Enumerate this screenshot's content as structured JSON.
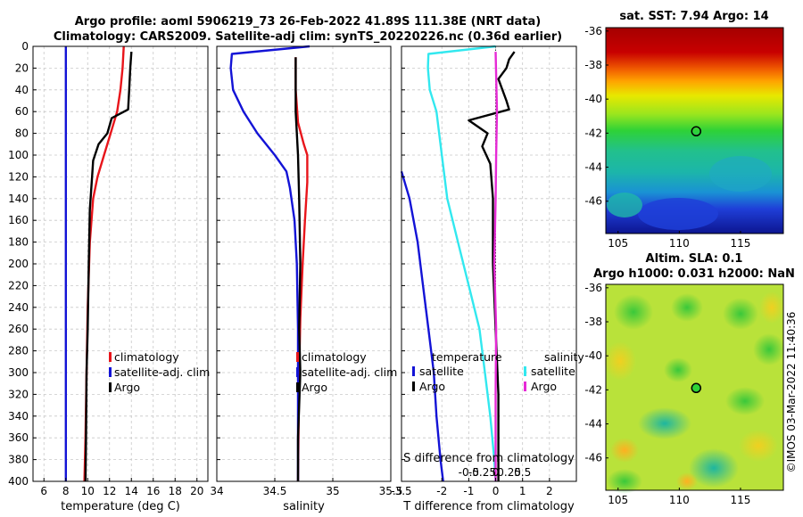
{
  "header": {
    "title_line1": "Argo profile: aoml 5906219_73 26-Feb-2022 41.89S 111.38E (NRT data)",
    "title_line2": "Climatology: CARS2009. Satellite-adj clim: synTS_20220226.nc (0.36d earlier)"
  },
  "copyright": "©IMOS 03-Mar-2022 11:40:36",
  "colors": {
    "climatology": "#e8151b",
    "satellite": "#1313d6",
    "argo": "#000000",
    "cyan": "#32e8ef",
    "magenta": "#e62ad6"
  },
  "depth_axis": {
    "ticks": [
      "0",
      "20",
      "40",
      "60",
      "80",
      "100",
      "120",
      "140",
      "160",
      "180",
      "200",
      "220",
      "240",
      "260",
      "280",
      "300",
      "320",
      "340",
      "360",
      "380",
      "400"
    ]
  },
  "chart_data": [
    {
      "type": "line",
      "name": "temperature",
      "xlabel": "temperature (deg C)",
      "ylabel": "depth",
      "xlim": [
        5,
        21
      ],
      "ylim": [
        400,
        0
      ],
      "xticks": [
        6,
        8,
        10,
        12,
        14,
        16,
        18,
        20
      ],
      "xtick_labels": [
        "6",
        "8",
        "10",
        "12",
        "14",
        "16",
        "18",
        "20"
      ],
      "legend": [
        {
          "label": "climatology",
          "color": "#e8151b"
        },
        {
          "label": "satellite-adj. clim",
          "color": "#1313d6"
        },
        {
          "label": "Argo",
          "color": "#000000"
        }
      ],
      "series": [
        {
          "name": "climatology",
          "color": "#e8151b",
          "width": 2.4,
          "points": [
            [
              13.3,
              0
            ],
            [
              13.2,
              20
            ],
            [
              13.0,
              40
            ],
            [
              12.7,
              60
            ],
            [
              12.1,
              80
            ],
            [
              11.5,
              100
            ],
            [
              10.9,
              120
            ],
            [
              10.5,
              140
            ],
            [
              10.2,
              180
            ],
            [
              10.0,
              240
            ],
            [
              9.9,
              300
            ],
            [
              9.8,
              360
            ],
            [
              9.7,
              400
            ]
          ]
        },
        {
          "name": "satellite-adj. clim",
          "color": "#1313d6",
          "width": 2.4,
          "points": [
            [
              8.0,
              0
            ],
            [
              8.0,
              400
            ]
          ]
        },
        {
          "name": "Argo",
          "color": "#000000",
          "width": 2.4,
          "points": [
            [
              14.0,
              5
            ],
            [
              13.9,
              20
            ],
            [
              13.8,
              40
            ],
            [
              13.7,
              58
            ],
            [
              12.2,
              66
            ],
            [
              11.8,
              80
            ],
            [
              11.0,
              90
            ],
            [
              10.5,
              105
            ],
            [
              10.4,
              120
            ],
            [
              10.2,
              150
            ],
            [
              10.1,
              200
            ],
            [
              10.0,
              260
            ],
            [
              9.9,
              300
            ],
            [
              9.85,
              360
            ],
            [
              9.8,
              400
            ]
          ]
        }
      ]
    },
    {
      "type": "line",
      "name": "salinity",
      "xlabel": "salinity",
      "ylabel": "depth",
      "xlim": [
        34,
        35.5
      ],
      "ylim": [
        400,
        0
      ],
      "xticks": [
        34,
        34.5,
        35,
        35.5
      ],
      "xtick_labels": [
        "34",
        "34.5",
        "35",
        "35.5"
      ],
      "legend": [
        {
          "label": "climatology",
          "color": "#e8151b"
        },
        {
          "label": "satellite-adj. clim",
          "color": "#1313d6"
        },
        {
          "label": "Argo",
          "color": "#000000"
        }
      ],
      "series": [
        {
          "name": "climatology",
          "color": "#e8151b",
          "width": 2.4,
          "points": [
            [
              34.68,
              10
            ],
            [
              34.68,
              40
            ],
            [
              34.7,
              70
            ],
            [
              34.75,
              90
            ],
            [
              34.78,
              100
            ],
            [
              34.78,
              125
            ],
            [
              34.76,
              160
            ],
            [
              34.74,
              200
            ],
            [
              34.72,
              250
            ],
            [
              34.71,
              300
            ],
            [
              34.7,
              400
            ]
          ]
        },
        {
          "name": "satellite-adj. clim",
          "color": "#1313d6",
          "width": 2.4,
          "points": [
            [
              34.8,
              0
            ],
            [
              34.13,
              7
            ],
            [
              34.12,
              20
            ],
            [
              34.14,
              40
            ],
            [
              34.23,
              60
            ],
            [
              34.35,
              80
            ],
            [
              34.5,
              100
            ],
            [
              34.6,
              115
            ],
            [
              34.63,
              130
            ],
            [
              34.67,
              160
            ],
            [
              34.69,
              200
            ],
            [
              34.7,
              260
            ],
            [
              34.7,
              400
            ]
          ]
        },
        {
          "name": "Argo",
          "color": "#000000",
          "width": 2.4,
          "points": [
            [
              34.68,
              10
            ],
            [
              34.68,
              60
            ],
            [
              34.7,
              100
            ],
            [
              34.71,
              140
            ],
            [
              34.72,
              200
            ],
            [
              34.71,
              260
            ],
            [
              34.72,
              300
            ],
            [
              34.7,
              360
            ],
            [
              34.7,
              400
            ]
          ]
        }
      ]
    },
    {
      "type": "line",
      "name": "difference",
      "xlabel": "T difference from climatology",
      "x2label": "S difference from climatology",
      "ylabel": "depth",
      "xlim": [
        -3.5,
        3
      ],
      "ylim": [
        400,
        0
      ],
      "xticks": [
        -3.5,
        -2,
        -1,
        0,
        1,
        2
      ],
      "xtick_labels": [
        "-3.5",
        "-2",
        "-1",
        "0",
        "1",
        "2"
      ],
      "x2ticks": [
        -1,
        -0.5,
        0,
        0.5,
        1
      ],
      "x2tick_labels": [
        "-0.5",
        "-0.25",
        "0",
        "0.25",
        "0.5"
      ],
      "legend_left_title": "temperature",
      "legend_right_title": "salinity",
      "legend": [
        {
          "label": "satellite",
          "color": "#1313d6",
          "group": "temperature"
        },
        {
          "label": "Argo",
          "color": "#000000",
          "group": "temperature"
        },
        {
          "label": "satellite",
          "color": "#32e8ef",
          "group": "salinity"
        },
        {
          "label": "Argo",
          "color": "#e62ad6",
          "group": "salinity"
        }
      ],
      "series": [
        {
          "name": "T satellite",
          "color": "#1313d6",
          "width": 2.4,
          "points": [
            [
              -3.5,
              115
            ],
            [
              -3.2,
              140
            ],
            [
              -2.9,
              180
            ],
            [
              -2.7,
              220
            ],
            [
              -2.5,
              260
            ],
            [
              -2.3,
              300
            ],
            [
              -2.2,
              340
            ],
            [
              -2.05,
              380
            ],
            [
              -1.95,
              400
            ]
          ]
        },
        {
          "name": "S satellite",
          "color": "#32e8ef",
          "width": 2.4,
          "points": [
            [
              0.0,
              0
            ],
            [
              -2.5,
              7
            ],
            [
              -2.52,
              20
            ],
            [
              -2.45,
              40
            ],
            [
              -2.2,
              60
            ],
            [
              -2.1,
              80
            ],
            [
              -2.0,
              100
            ],
            [
              -1.8,
              140
            ],
            [
              -1.4,
              180
            ],
            [
              -1.0,
              220
            ],
            [
              -0.6,
              260
            ],
            [
              -0.4,
              300
            ],
            [
              -0.2,
              340
            ],
            [
              -0.05,
              380
            ],
            [
              0.0,
              400
            ]
          ]
        },
        {
          "name": "T Argo",
          "color": "#000000",
          "width": 2.4,
          "points": [
            [
              0.7,
              5
            ],
            [
              0.5,
              12
            ],
            [
              0.4,
              20
            ],
            [
              0.1,
              30
            ],
            [
              0.4,
              50
            ],
            [
              0.5,
              58
            ],
            [
              -1.0,
              68
            ],
            [
              -0.3,
              80
            ],
            [
              -0.5,
              92
            ],
            [
              -0.2,
              108
            ],
            [
              -0.1,
              140
            ],
            [
              -0.1,
              200
            ],
            [
              0.0,
              260
            ],
            [
              0.1,
              320
            ],
            [
              0.1,
              400
            ]
          ]
        },
        {
          "name": "S Argo",
          "color": "#e62ad6",
          "width": 2.4,
          "points": [
            [
              0.0,
              5
            ],
            [
              0.05,
              60
            ],
            [
              0.02,
              100
            ],
            [
              0.0,
              140
            ],
            [
              -0.05,
              200
            ],
            [
              0.02,
              260
            ],
            [
              0.0,
              320
            ],
            [
              0.0,
              400
            ]
          ]
        }
      ]
    }
  ],
  "maps": [
    {
      "title": "sat. SST: 7.94 Argo: 14",
      "yticks": [
        "-36",
        "-38",
        "-40",
        "-42",
        "-44",
        "-46"
      ],
      "xticks": [
        "105",
        "110",
        "115"
      ],
      "lat_range": [
        -47.9,
        -35.8
      ],
      "lon_range": [
        104,
        118.5
      ],
      "marker": {
        "lon": 111.38,
        "lat": -41.89
      }
    },
    {
      "title1": "Altim. SLA: 0.1",
      "title2": "Argo h1000: 0.031 h2000: NaN",
      "yticks": [
        "-36",
        "-38",
        "-40",
        "-42",
        "-44",
        "-46"
      ],
      "xticks": [
        "105",
        "110",
        "115"
      ],
      "lat_range": [
        -47.9,
        -35.8
      ],
      "lon_range": [
        104,
        118.5
      ],
      "marker": {
        "lon": 111.38,
        "lat": -41.89
      }
    }
  ]
}
